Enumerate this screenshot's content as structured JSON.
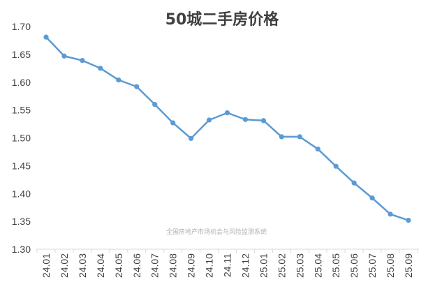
{
  "chart_data": {
    "type": "line",
    "title": "50城二手房价格",
    "watermark": "全国房地产市场机会与风险监测系统",
    "x": [
      "24.01",
      "24.02",
      "24.03",
      "24.04",
      "24.05",
      "24.06",
      "24.07",
      "24.08",
      "24.09",
      "24.10",
      "24.11",
      "24.12",
      "25.01",
      "25.02",
      "25.03",
      "25.04",
      "25.05",
      "25.06",
      "25.07",
      "25.08",
      "25.09"
    ],
    "series": [
      {
        "values": [
          1.681,
          1.647,
          1.639,
          1.625,
          1.604,
          1.592,
          1.56,
          1.527,
          1.499,
          1.532,
          1.545,
          1.533,
          1.531,
          1.502,
          1.502,
          1.48,
          1.449,
          1.419,
          1.392,
          1.363,
          1.352
        ]
      }
    ],
    "ylim": [
      1.3,
      1.7
    ],
    "yticks": [
      "1.30",
      "1.35",
      "1.40",
      "1.45",
      "1.50",
      "1.55",
      "1.60",
      "1.65",
      "1.70"
    ],
    "xlabel": "",
    "ylabel": "",
    "grid": false,
    "line_color": "#5b9bd5",
    "axis_color": "#d9d9d9"
  }
}
